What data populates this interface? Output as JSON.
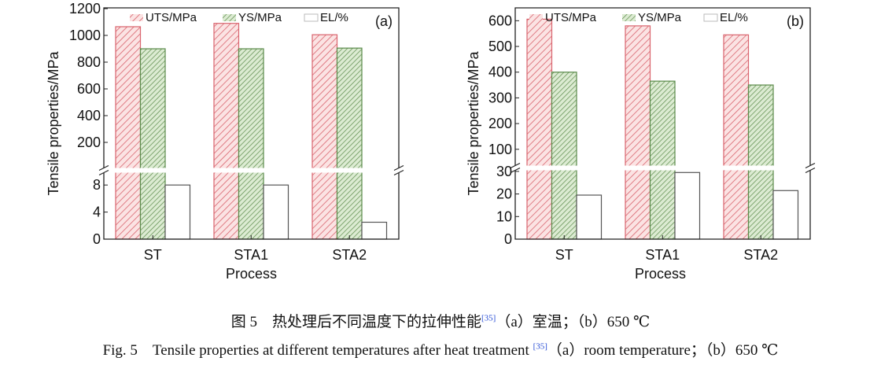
{
  "chart_data": [
    {
      "type": "bar",
      "panel_label": "(a)",
      "ylabel": "Tensile properties/MPa",
      "xlabel": "Process",
      "categories": [
        "ST",
        "STA1",
        "STA2"
      ],
      "series": [
        {
          "name": "UTS/MPa",
          "values": [
            1065,
            1090,
            1005
          ],
          "axis": "upper",
          "color": "#d9646e",
          "fill": "#fbe3e3"
        },
        {
          "name": "YS/MPa",
          "values": [
            900,
            900,
            905
          ],
          "axis": "upper",
          "color": "#5a8a4a",
          "fill": "#dcebd2"
        },
        {
          "name": "EL/%",
          "values": [
            8,
            8,
            2.5
          ],
          "axis": "lower",
          "color": "#555555",
          "fill": "#ffffff"
        }
      ],
      "y_upper": {
        "range": [
          0,
          1200
        ],
        "ticks": [
          200,
          400,
          600,
          800,
          1000,
          1200
        ]
      },
      "y_lower": {
        "range": [
          0,
          10
        ],
        "ticks": [
          0,
          4,
          8
        ]
      },
      "axis_break": true,
      "legend": "top"
    },
    {
      "type": "bar",
      "panel_label": "(b)",
      "ylabel": "Tensile properties/MPa",
      "xlabel": "Process",
      "categories": [
        "ST",
        "STA1",
        "STA2"
      ],
      "series": [
        {
          "name": "UTS/MPa",
          "values": [
            606,
            580,
            545
          ],
          "axis": "upper",
          "color": "#d9646e",
          "fill": "#fbe3e3"
        },
        {
          "name": "YS/MPa",
          "values": [
            400,
            365,
            350
          ],
          "axis": "upper",
          "color": "#5a8a4a",
          "fill": "#dcebd2"
        },
        {
          "name": "EL/%",
          "values": [
            19.5,
            29.5,
            21.5
          ],
          "axis": "lower",
          "color": "#555555",
          "fill": "#ffffff"
        }
      ],
      "y_upper": {
        "range": [
          32,
          650
        ],
        "ticks": [
          100,
          200,
          300,
          400,
          500,
          600
        ]
      },
      "y_lower": {
        "range": [
          0,
          31
        ],
        "ticks": [
          0,
          10,
          20,
          30
        ]
      },
      "axis_break": true,
      "legend": "top"
    }
  ],
  "caption": {
    "cn_prefix": "图 5　热处理后不同温度下的拉伸性能",
    "cn_ref": "[35]",
    "cn_suffix": "（a）室温；（b）650 ℃",
    "en_prefix": "Fig. 5　Tensile properties at different temperatures after heat treatment ",
    "en_ref": "[35]",
    "en_suffix": "（a）room temperature；（b）650 ℃"
  }
}
